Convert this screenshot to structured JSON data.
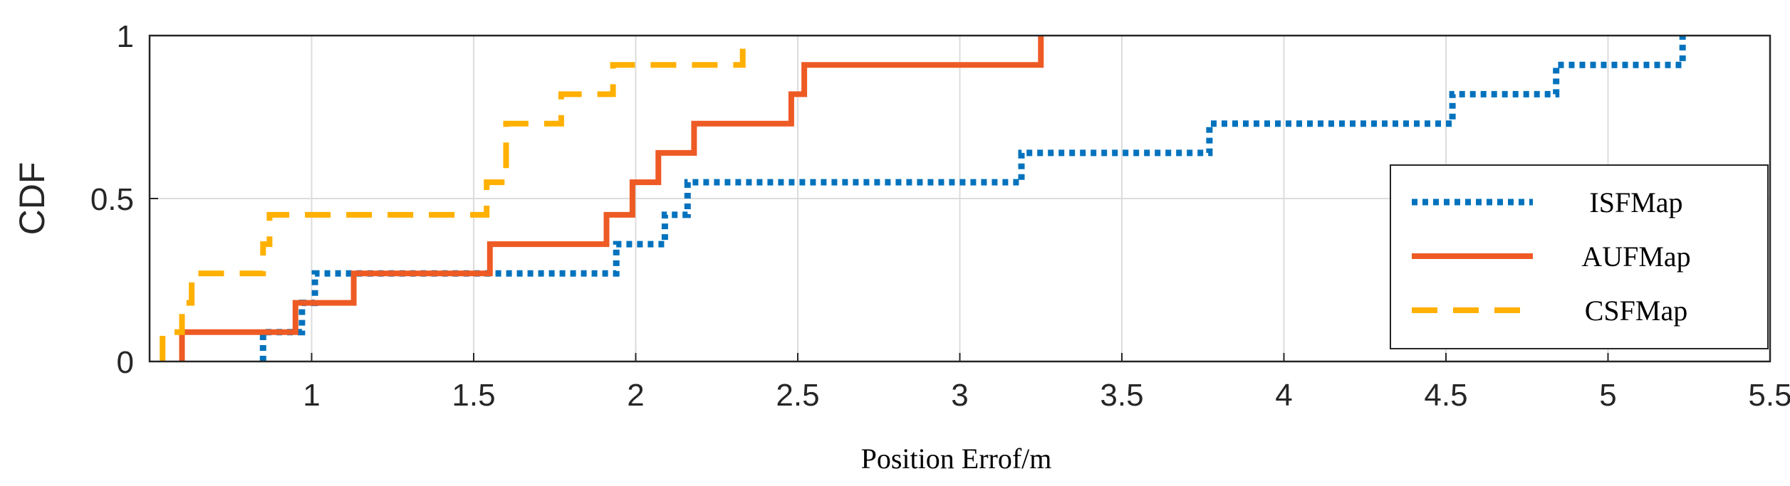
{
  "chart_data": {
    "type": "line",
    "title": "",
    "xlabel": "Position Errof/m",
    "ylabel": "CDF",
    "xlim": [
      0.5,
      5.5
    ],
    "ylim": [
      0,
      1
    ],
    "xticks": [
      "1",
      "1.5",
      "2",
      "2.5",
      "3",
      "3.5",
      "4",
      "4.5",
      "5",
      "5.5"
    ],
    "yticks": [
      "0",
      "0.5",
      "1"
    ],
    "grid": true,
    "legend_position": "lower-right",
    "series": [
      {
        "name": "ISFMap",
        "style": "dotted",
        "color": "#0072BD",
        "x": [
          0.85,
          0.85,
          0.97,
          1.01,
          1.94,
          2.09,
          2.16,
          3.19,
          3.77,
          4.52,
          4.84,
          5.23
        ],
        "y": [
          0.0,
          0.09,
          0.18,
          0.27,
          0.36,
          0.45,
          0.55,
          0.64,
          0.73,
          0.82,
          0.91,
          1.0
        ]
      },
      {
        "name": "AUFMap",
        "style": "solid",
        "color": "#EE5A24",
        "x": [
          0.6,
          0.95,
          1.13,
          1.55,
          1.91,
          1.99,
          2.07,
          2.18,
          2.48,
          2.52,
          3.25
        ],
        "y": [
          0.09,
          0.18,
          0.27,
          0.36,
          0.45,
          0.55,
          0.64,
          0.73,
          0.82,
          0.91,
          1.0
        ]
      },
      {
        "name": "CSFMap",
        "style": "dashed",
        "color": "#FFB000",
        "x": [
          0.54,
          0.6,
          0.63,
          0.85,
          0.87,
          1.54,
          1.6,
          1.77,
          1.93,
          2.33
        ],
        "y": [
          0.09,
          0.18,
          0.27,
          0.36,
          0.45,
          0.55,
          0.73,
          0.82,
          0.91,
          1.0
        ]
      }
    ]
  }
}
